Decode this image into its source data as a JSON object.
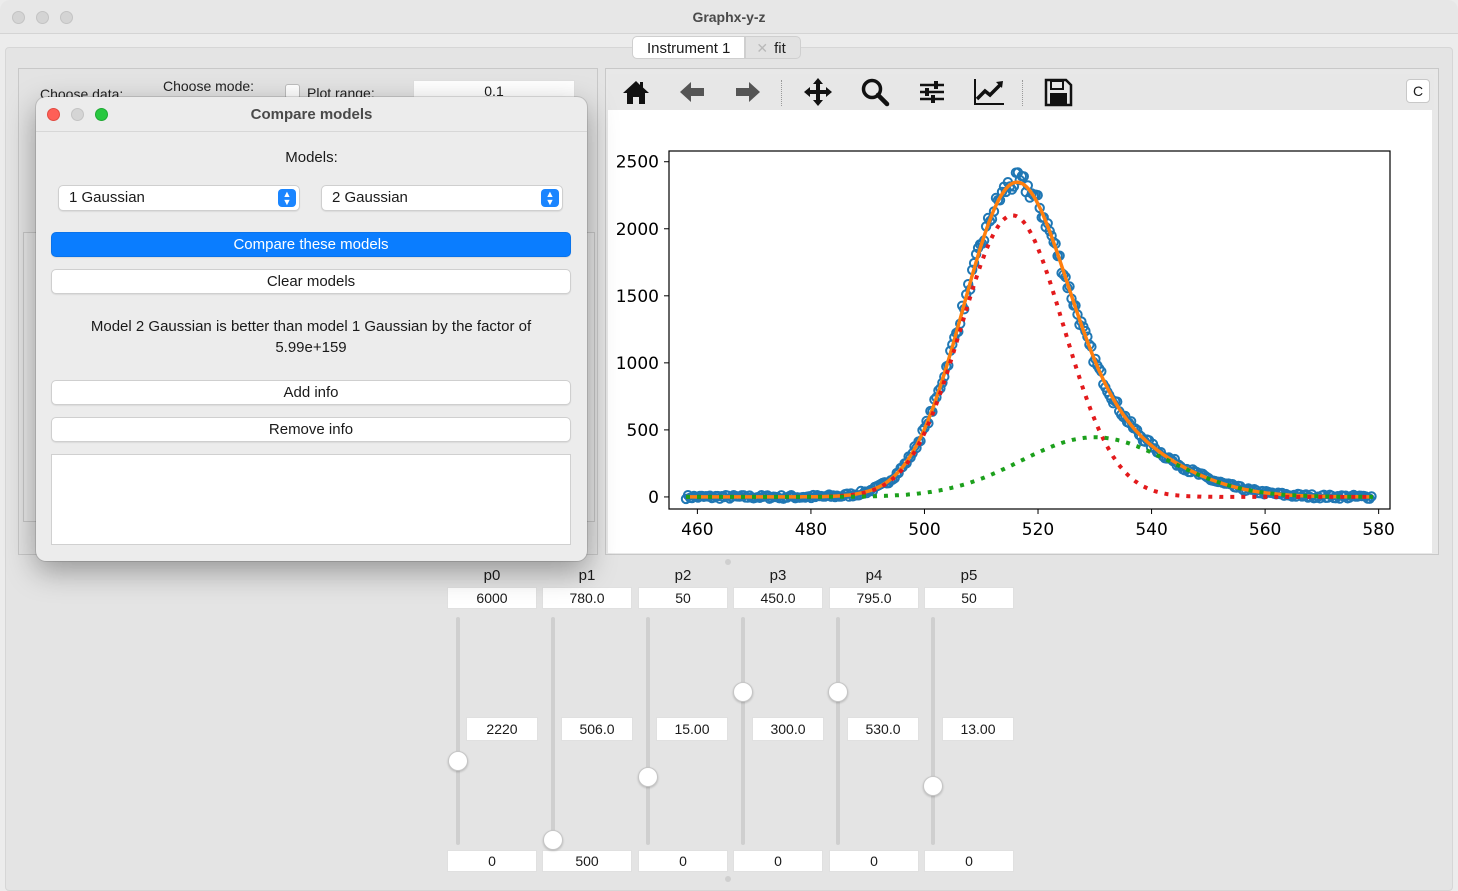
{
  "window": {
    "title": "Graphx-y-z"
  },
  "tabs": [
    {
      "label": "Instrument 1"
    },
    {
      "label": "fit"
    }
  ],
  "left_panel": {
    "choose_data_label": "Choose data:",
    "choose_mode_label": "Choose mode:",
    "plot_range_label": "Plot range:",
    "plot_range_value": "0.1"
  },
  "toolbar": {
    "buttons": [
      "home-icon",
      "back-arrow-icon",
      "forward-arrow-icon",
      "pan-icon",
      "zoom-icon",
      "configure-subplots-icon",
      "edit-axis-icon",
      "save-icon"
    ],
    "c_label": "C"
  },
  "dialog": {
    "title": "Compare models",
    "models_label": "Models:",
    "model_a": "1 Gaussian",
    "model_b": "2 Gaussian",
    "compare_button": "Compare these models",
    "clear_button": "Clear models",
    "result_line1": "Model 2 Gaussian is better than model 1 Gaussian by the factor of",
    "result_line2": "5.99e+159",
    "add_info_button": "Add info",
    "remove_info_button": "Remove info",
    "info_text": ""
  },
  "params": [
    {
      "name": "p0",
      "max": "6000",
      "value": "2220",
      "min": "0",
      "level": 0.37
    },
    {
      "name": "p1",
      "max": "780.0",
      "value": "506.0",
      "min": "500",
      "level": 0.02
    },
    {
      "name": "p2",
      "max": "50",
      "value": "15.00",
      "min": "0",
      "level": 0.3
    },
    {
      "name": "p3",
      "max": "450.0",
      "value": "300.0",
      "min": "0",
      "level": 0.67
    },
    {
      "name": "p4",
      "max": "795.0",
      "value": "530.0",
      "min": "0",
      "level": 0.67
    },
    {
      "name": "p5",
      "max": "50",
      "value": "13.00",
      "min": "0",
      "level": 0.26
    }
  ],
  "chart_data": {
    "type": "line",
    "xlim": [
      455,
      582
    ],
    "ylim": [
      -90,
      2580
    ],
    "xticks": [
      "460",
      "480",
      "500",
      "520",
      "540",
      "560",
      "580"
    ],
    "yticks": [
      "0",
      "500",
      "1000",
      "1500",
      "2000",
      "2500"
    ],
    "series": [
      {
        "kind": "data points",
        "color": "#1f77b4",
        "model": "measured"
      },
      {
        "kind": "total fit",
        "color": "#ff7f0e",
        "style": "solid"
      },
      {
        "kind": "gaussian 1",
        "color": "#e31a1c",
        "style": "dotted",
        "amplitude": 2100,
        "center": 515.5,
        "sigma": 9.0
      },
      {
        "kind": "gaussian 2",
        "color": "#1ca01c",
        "style": "dotted",
        "amplitude": 445,
        "center": 530,
        "sigma": 13.0
      }
    ],
    "x_range": [
      458,
      579
    ]
  }
}
